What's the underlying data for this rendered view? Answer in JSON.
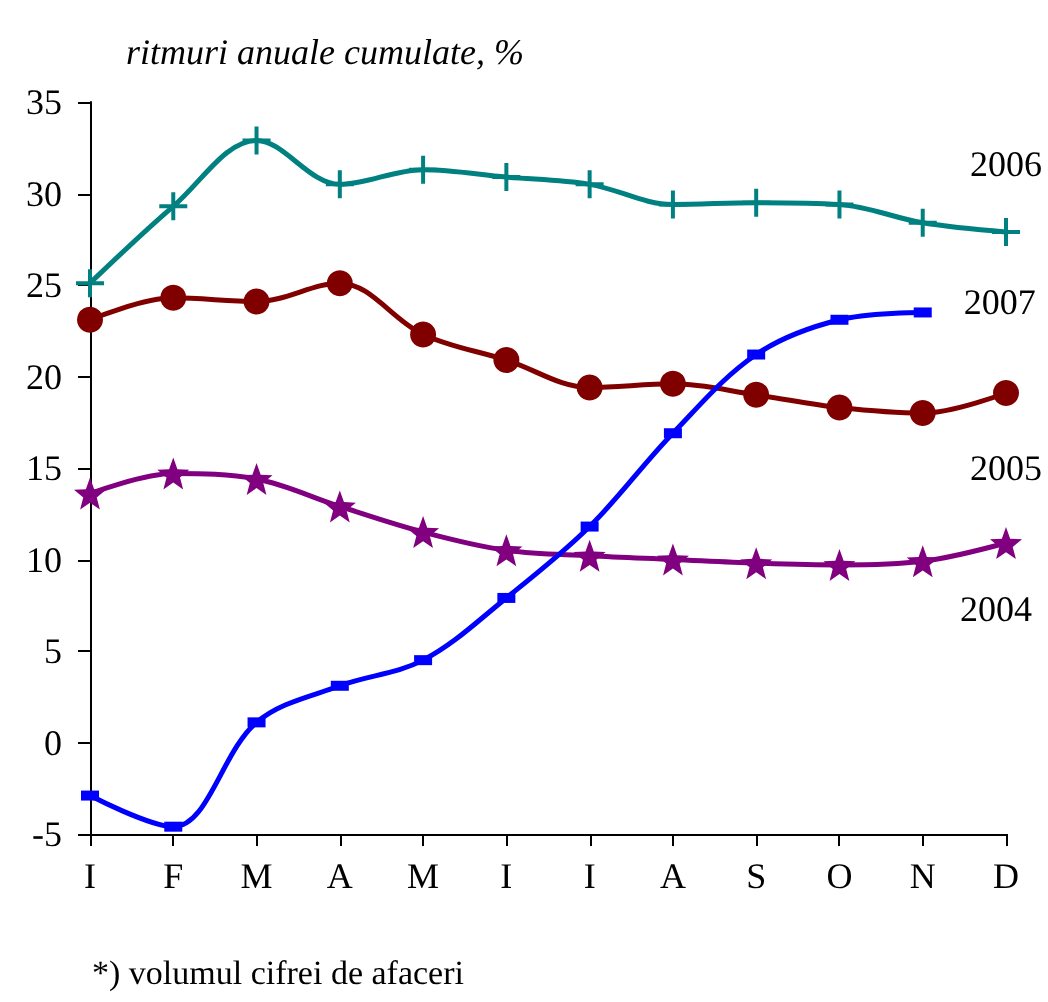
{
  "chart_data": {
    "type": "line",
    "ylabel": "ritmuri anuale cumulate, %",
    "annotations": [
      "*) volumul cifrei de afaceri"
    ],
    "categories": [
      "I",
      "F",
      "M",
      "A",
      "M",
      "I",
      "I",
      "A",
      "S",
      "O",
      "N",
      "D"
    ],
    "ylim": [
      -5,
      35
    ],
    "yticks": [
      -5,
      0,
      5,
      10,
      15,
      20,
      25,
      30,
      35
    ],
    "grid": false,
    "line_style": "solid",
    "series": [
      {
        "name": "2004",
        "color": "#800080",
        "marker": "star",
        "values": [
          13.6,
          14.7,
          14.4,
          12.9,
          11.5,
          10.5,
          10.2,
          10.0,
          9.8,
          9.7,
          9.9,
          10.9
        ]
      },
      {
        "name": "2005",
        "color": "#800000",
        "marker": "circle",
        "values": [
          23.1,
          24.3,
          24.1,
          25.1,
          22.3,
          20.9,
          19.4,
          19.6,
          19.0,
          18.3,
          18.0,
          19.1
        ]
      },
      {
        "name": "2006",
        "color": "#008080",
        "marker": "cross",
        "values": [
          25.1,
          29.3,
          32.9,
          30.5,
          31.3,
          30.9,
          30.5,
          29.4,
          29.5,
          29.4,
          28.4,
          27.9
        ]
      },
      {
        "name": "2007",
        "color": "#0000ff",
        "marker": "square",
        "values": [
          -2.9,
          -4.6,
          1.1,
          3.1,
          4.5,
          7.9,
          11.8,
          16.9,
          21.2,
          23.1,
          23.5,
          null
        ]
      }
    ]
  }
}
